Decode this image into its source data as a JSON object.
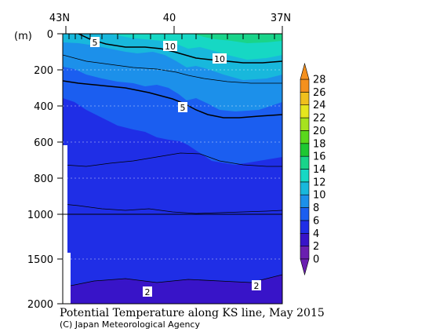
{
  "chart_data": {
    "type": "heatmap",
    "title": "Potential Temperature along KS line, May 2015",
    "credit": "(C) Japan Meteorological Agency",
    "x_axis": {
      "ticks": [
        {
          "label": "43N",
          "lat": 43
        },
        {
          "label": "40",
          "lat": 40
        },
        {
          "label": "37N",
          "lat": 37
        }
      ],
      "range": [
        43,
        37
      ]
    },
    "y_axis": {
      "unit_label": "(m)",
      "ticks": [
        {
          "label": "0",
          "depth": 0
        },
        {
          "label": "200",
          "depth": 200
        },
        {
          "label": "400",
          "depth": 400
        },
        {
          "label": "600",
          "depth": 600
        },
        {
          "label": "800",
          "depth": 800
        },
        {
          "label": "1000",
          "depth": 1000
        },
        {
          "label": "1500",
          "depth": 1500
        },
        {
          "label": "2000",
          "depth": 2000
        }
      ],
      "scale_break": "linear 0-1000 m, compressed 1000-2000 m",
      "range": [
        0,
        2000
      ]
    },
    "colorbar": {
      "levels": [
        0,
        2,
        4,
        6,
        8,
        10,
        12,
        14,
        16,
        18,
        20,
        22,
        24,
        26,
        28
      ],
      "labels": [
        "0",
        "2",
        "4",
        "6",
        "8",
        "10",
        "12",
        "14",
        "16",
        "18",
        "20",
        "22",
        "24",
        "26",
        "28"
      ],
      "colors": [
        "#6a1fb0",
        "#3814c8",
        "#1f2ee6",
        "#1b5ef0",
        "#1c90ea",
        "#18b8dc",
        "#16d8c4",
        "#19d48a",
        "#1ec832",
        "#5ad81c",
        "#a6e21e",
        "#e6e61e",
        "#f0c01e",
        "#f4901e"
      ],
      "extend": "both",
      "low_color": "#6a1fb0",
      "high_color": "#f4901e"
    },
    "contour_labels": [
      {
        "text": "5"
      },
      {
        "text": "10"
      },
      {
        "text": "10"
      },
      {
        "text": "5"
      },
      {
        "text": "2"
      },
      {
        "text": "2"
      }
    ],
    "field_summary": "Surface water 6-12 C with warmest water toward 37N; 5 C isotherm deepens from ~60 m at 43N to ~350 m at 37N; water below ~600 m about 2-4 C; below ~1700 m under 2 C"
  }
}
